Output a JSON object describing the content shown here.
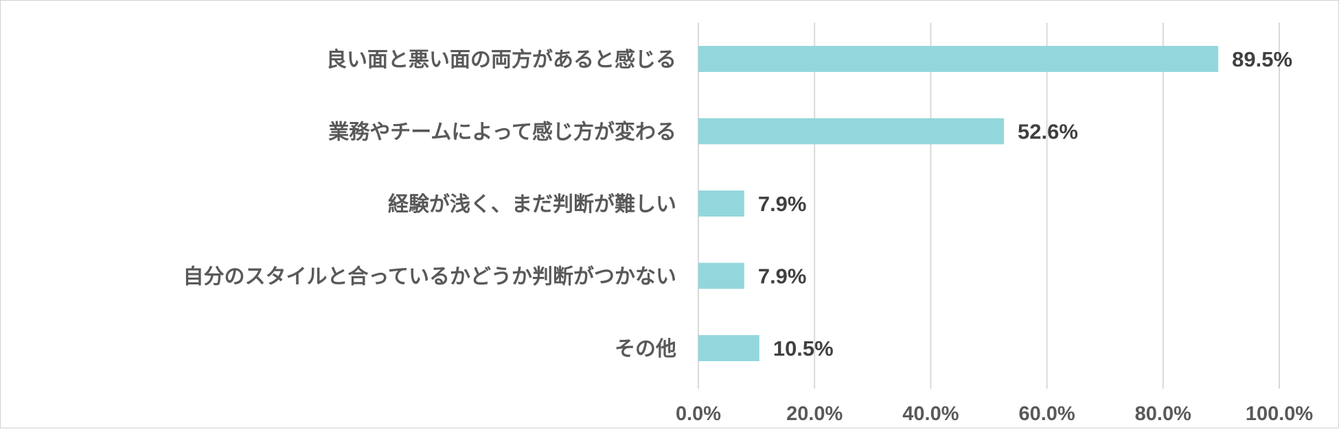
{
  "chart_data": {
    "type": "bar",
    "orientation": "horizontal",
    "categories": [
      "良い面と悪い面の両方があると感じる",
      "業務やチームによって感じ方が変わる",
      "経験が浅く、まだ判断が難しい",
      "自分のスタイルと合っているかどうか判断がつかない",
      "その他"
    ],
    "values": [
      89.5,
      52.6,
      7.9,
      7.9,
      10.5
    ],
    "value_labels": [
      "89.5%",
      "52.6%",
      "7.9%",
      "7.9%",
      "10.5%"
    ],
    "xlim": [
      0,
      100
    ],
    "x_ticks": [
      0,
      20,
      40,
      60,
      80,
      100
    ],
    "x_tick_labels": [
      "0.0%",
      "20.0%",
      "40.0%",
      "60.0%",
      "80.0%",
      "100.0%"
    ],
    "grid": true,
    "legend": "none",
    "title": "",
    "xlabel": "",
    "ylabel": "",
    "bar_color": "#93d7dc",
    "grid_color": "#d9d9d9"
  }
}
